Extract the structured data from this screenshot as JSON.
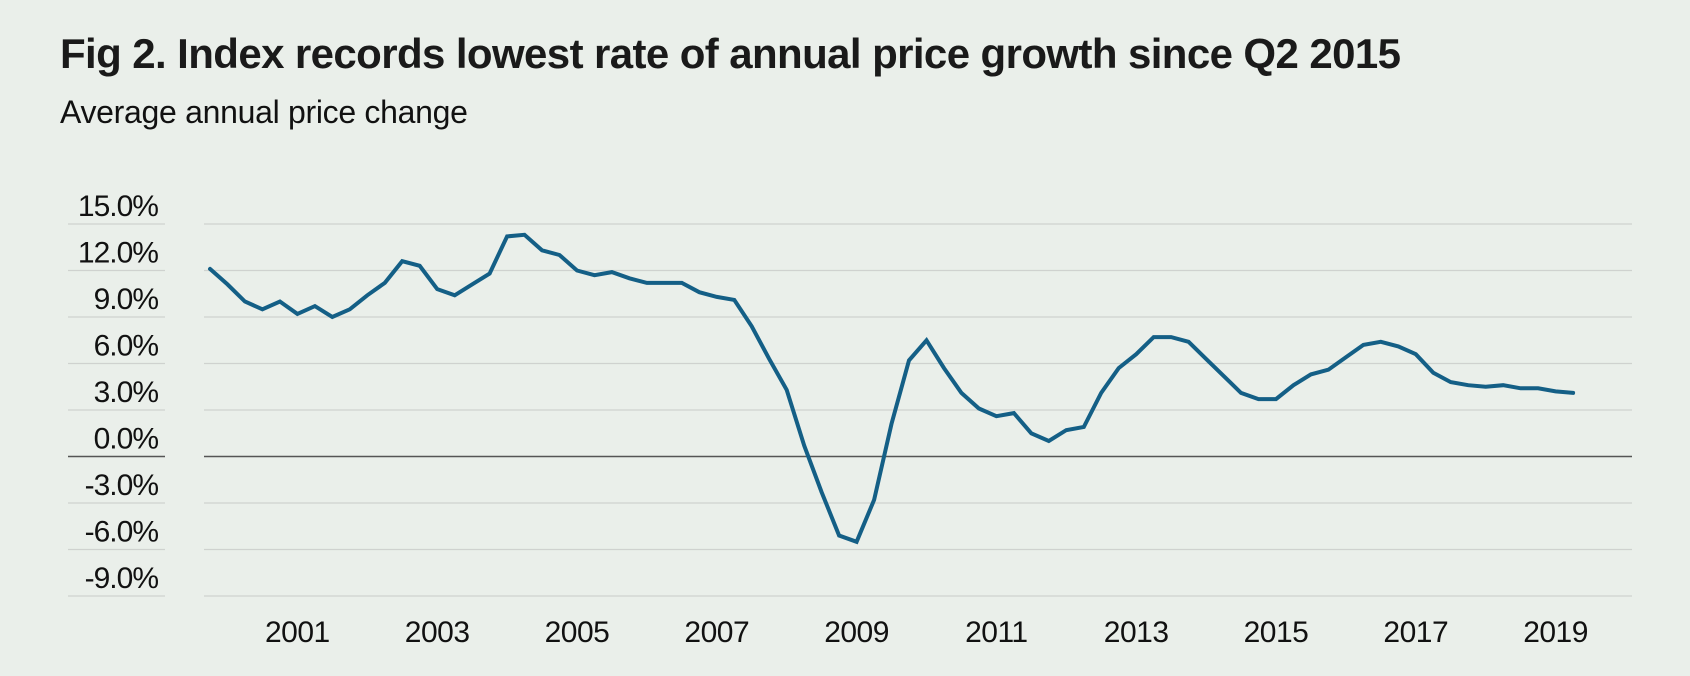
{
  "title": "Fig 2. Index records lowest rate of annual price growth since Q2 2015",
  "subtitle": "Average annual price change",
  "colors": {
    "background": "#eaefea",
    "line": "#145f86",
    "grid": "#cfd2cf",
    "zero_line": "#555555",
    "text": "#111111"
  },
  "chart_data": {
    "type": "line",
    "title": "Fig 2. Index records lowest rate of annual price growth since Q2 2015",
    "subtitle": "Average annual price change",
    "xlabel": "",
    "ylabel": "",
    "ylim": [
      -9,
      15
    ],
    "yticks": [
      15,
      12,
      9,
      6,
      3,
      0,
      -3,
      -6,
      -9
    ],
    "ytick_labels": [
      "15.0%",
      "12.0%",
      "9.0%",
      "6.0%",
      "3.0%",
      "0.0%",
      "-3.0%",
      "-6.0%",
      "-9.0%"
    ],
    "xticks": [
      2001,
      2003,
      2005,
      2007,
      2009,
      2011,
      2013,
      2015,
      2017,
      2019
    ],
    "xtick_labels": [
      "2001",
      "2003",
      "2005",
      "2007",
      "2009",
      "2011",
      "2013",
      "2015",
      "2017",
      "2019"
    ],
    "xlim": [
      2000.0,
      2019.75
    ],
    "x_start": 2000.0,
    "x_step": 0.25,
    "grid": true,
    "legend": "none",
    "series": [
      {
        "name": "Average annual price change (%)",
        "values": [
          12.1,
          11.1,
          10.0,
          9.5,
          10.0,
          9.2,
          9.7,
          9.0,
          9.5,
          10.4,
          11.2,
          12.6,
          12.3,
          10.8,
          10.4,
          11.1,
          11.8,
          14.2,
          14.3,
          13.3,
          13.0,
          12.0,
          11.7,
          11.9,
          11.5,
          11.2,
          11.2,
          11.2,
          10.6,
          10.3,
          10.1,
          8.4,
          6.3,
          4.3,
          0.7,
          -2.3,
          -5.1,
          -5.5,
          -2.8,
          2.1,
          6.2,
          7.5,
          5.7,
          4.1,
          3.1,
          2.6,
          2.8,
          1.5,
          1.0,
          1.7,
          1.9,
          4.1,
          5.7,
          6.6,
          7.7,
          7.7,
          7.4,
          6.3,
          5.2,
          4.1,
          3.7,
          3.7,
          4.6,
          5.3,
          5.6,
          6.4,
          7.2,
          7.4,
          7.1,
          6.6,
          5.4,
          4.8,
          4.6,
          4.5,
          4.6,
          4.4,
          4.4,
          4.2,
          4.1
        ]
      }
    ]
  }
}
